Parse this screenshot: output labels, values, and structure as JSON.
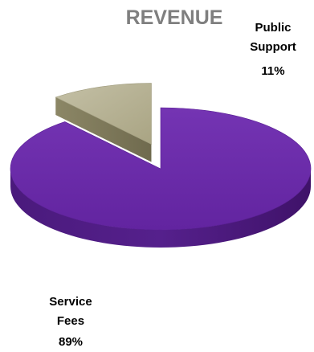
{
  "chart_data": {
    "type": "pie",
    "title": "REVENUE",
    "slices": [
      {
        "name": "Service Fees",
        "value": 89,
        "label": "89%",
        "color": "#6b2fa6"
      },
      {
        "name": "Public Support",
        "value": 11,
        "label": "11%",
        "color": "#b3ae8e"
      }
    ]
  }
}
